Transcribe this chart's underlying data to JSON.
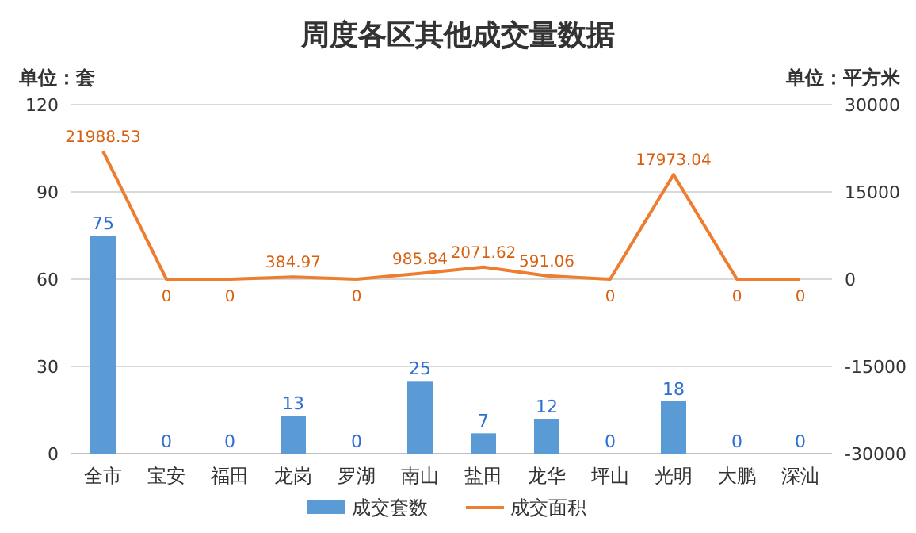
{
  "chart_data": {
    "type": "bar",
    "title": "周度各区其他成交量数据",
    "ylabel": "单位：套",
    "y2label": "单位：平方米",
    "categories": [
      "全市",
      "宝安",
      "福田",
      "龙岗",
      "罗湖",
      "南山",
      "盐田",
      "龙华",
      "坪山",
      "光明",
      "大鹏",
      "深汕"
    ],
    "series": [
      {
        "name": "成交套数",
        "color": "#5b9bd5",
        "values": [
          75,
          0,
          0,
          13,
          0,
          25,
          7,
          12,
          0,
          18,
          0,
          0
        ]
      },
      {
        "name": "成交面积",
        "type": "line",
        "axis": "y2",
        "color": "#ed7d31",
        "values": [
          21988.53,
          0,
          0,
          384.97,
          0,
          985.84,
          2071.62,
          591.06,
          0,
          17973.04,
          0,
          0
        ]
      }
    ],
    "ylim": [
      0,
      120
    ],
    "yticks": [
      0,
      30,
      60,
      90,
      120
    ],
    "y2lim": [
      -30000,
      30000
    ],
    "y2ticks": [
      -30000,
      -15000,
      0,
      15000,
      30000
    ],
    "grid": "y",
    "legend": "bottom",
    "data_labels": true,
    "marker": "none"
  }
}
